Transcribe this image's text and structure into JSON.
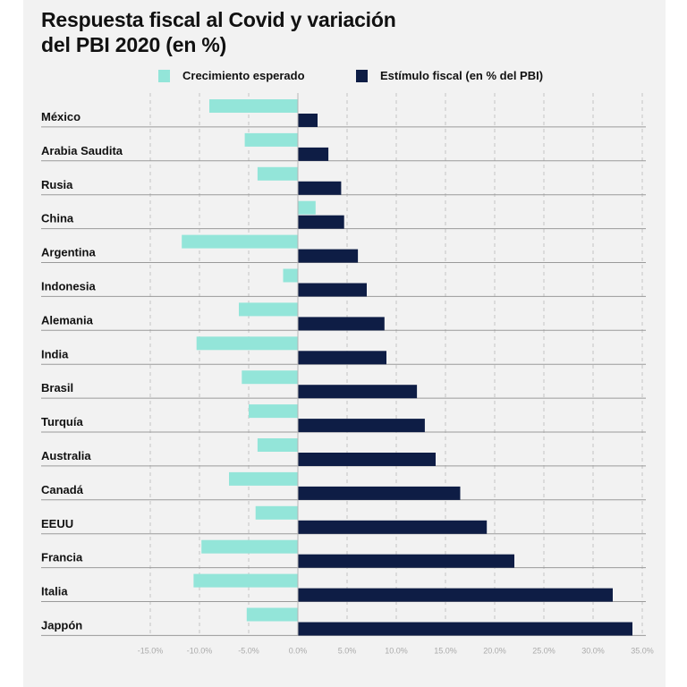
{
  "chart_data": {
    "type": "bar",
    "orientation": "horizontal",
    "title_lines": [
      "Respuesta fiscal al Covid y variación",
      "del PBI 2020 (en %)"
    ],
    "categories": [
      "México",
      "Arabia Saudita",
      "Rusia",
      "China",
      "Argentina",
      "Indonesia",
      "Alemania",
      "India",
      "Brasil",
      "Turquía",
      "Australia",
      "Canadá",
      "EEUU",
      "Francia",
      "Italia",
      "Jappón"
    ],
    "series": [
      {
        "name": "Crecimiento esperado",
        "color": "#93e5d9",
        "values": [
          -9.0,
          -5.4,
          -4.1,
          1.8,
          -11.8,
          -1.5,
          -6.0,
          -10.3,
          -5.7,
          -5.0,
          -4.1,
          -7.0,
          -4.3,
          -9.8,
          -10.6,
          -5.2
        ]
      },
      {
        "name": "Estímulo fiscal (en % del PBI)",
        "color": "#0e1d45",
        "values": [
          2.0,
          3.1,
          4.4,
          4.7,
          6.1,
          7.0,
          8.8,
          9.0,
          12.1,
          12.9,
          14.0,
          16.5,
          19.2,
          22.0,
          32.0,
          34.0
        ]
      }
    ],
    "xlim": [
      -15,
      35
    ],
    "xticks": [
      -15,
      -10,
      -5,
      0,
      5,
      10,
      15,
      20,
      25,
      30,
      35
    ],
    "xtick_labels": [
      "-15.0%",
      "-10.0%",
      "-5.0%",
      "0.0%",
      "5.0%",
      "10.0%",
      "15.0%",
      "20.0%",
      "25.0%",
      "30.0%",
      "35.0%"
    ],
    "grid": true,
    "legend_position": "top"
  }
}
